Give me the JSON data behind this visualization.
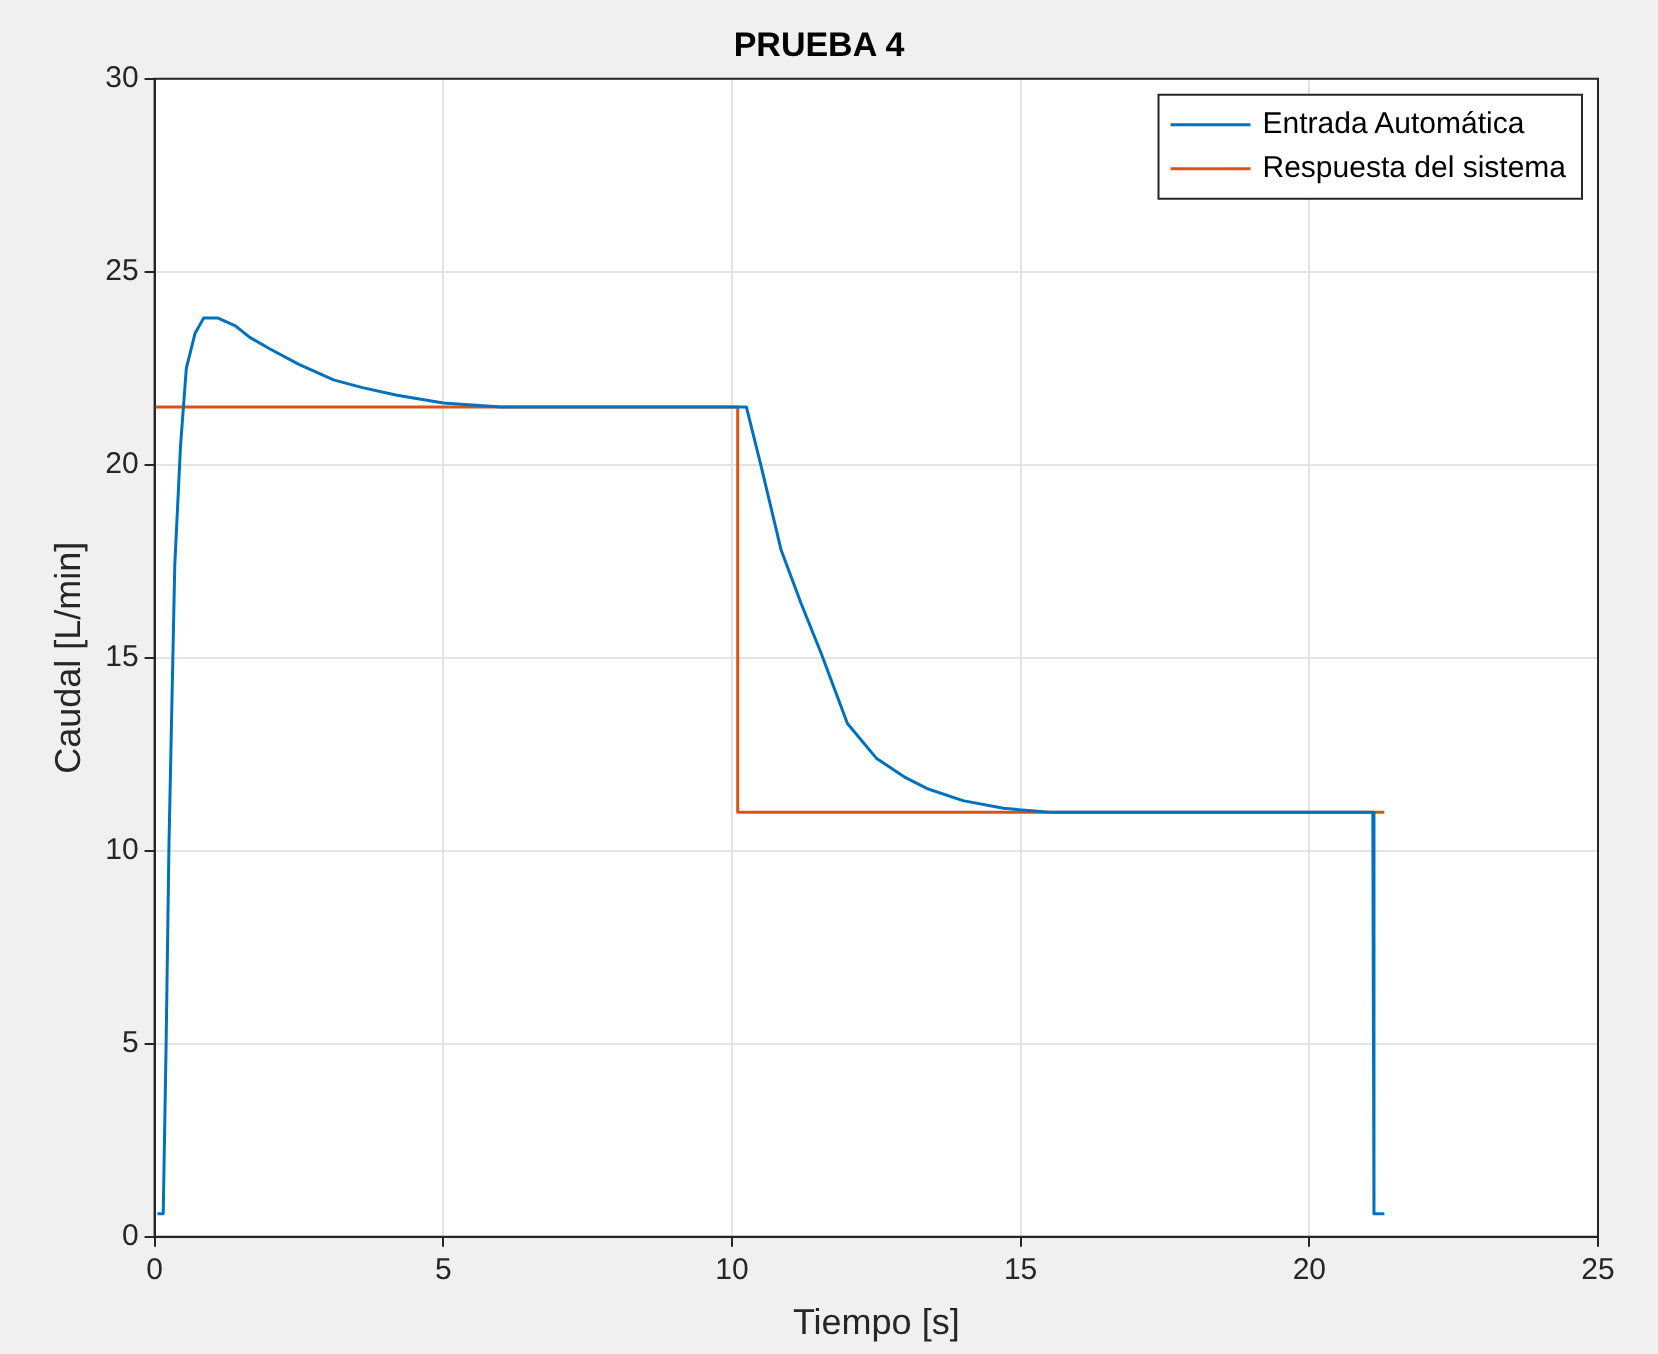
{
  "chart_data": {
    "type": "line",
    "title": "PRUEBA 4",
    "xlabel": "Tiempo [s]",
    "ylabel": "Caudal [L/min]",
    "xlim": [
      0,
      25
    ],
    "xticks": [
      0,
      5,
      10,
      15,
      20,
      25
    ],
    "ylim": [
      0,
      30
    ],
    "yticks": [
      0,
      5,
      10,
      15,
      20,
      25,
      30
    ],
    "grid": true,
    "legend": "top right",
    "marker": "none",
    "line_style": "solid",
    "series": [
      {
        "name": "Entrada Automática",
        "color": "#0072bd",
        "x": [
          0.05,
          0.15,
          0.2,
          0.25,
          0.35,
          0.45,
          0.55,
          0.7,
          0.85,
          1.1,
          1.4,
          1.65,
          2.0,
          2.5,
          3.1,
          3.6,
          4.2,
          5.0,
          6.0,
          7.0,
          8.0,
          9.0,
          10.0,
          10.25,
          10.5,
          10.85,
          11.2,
          11.55,
          12.0,
          12.5,
          13.0,
          13.4,
          14.0,
          14.7,
          15.5,
          17.0,
          19.0,
          20.5,
          21.1,
          21.12,
          21.3
        ],
        "values": [
          0.6,
          0.6,
          5.0,
          10.2,
          17.4,
          20.5,
          22.5,
          23.4,
          23.8,
          23.8,
          23.6,
          23.3,
          23.0,
          22.6,
          22.2,
          22.0,
          21.8,
          21.6,
          21.5,
          21.5,
          21.5,
          21.5,
          21.5,
          21.5,
          20.0,
          17.8,
          16.4,
          15.1,
          13.3,
          12.4,
          11.9,
          11.6,
          11.3,
          11.1,
          11.0,
          11.0,
          11.0,
          11.0,
          11.0,
          0.6,
          0.6
        ]
      },
      {
        "name": "Respuesta del sistema",
        "color": "#d95319",
        "x": [
          0,
          10.1,
          10.1,
          21.3
        ],
        "values": [
          21.5,
          21.5,
          11.0,
          11.0
        ]
      }
    ]
  }
}
